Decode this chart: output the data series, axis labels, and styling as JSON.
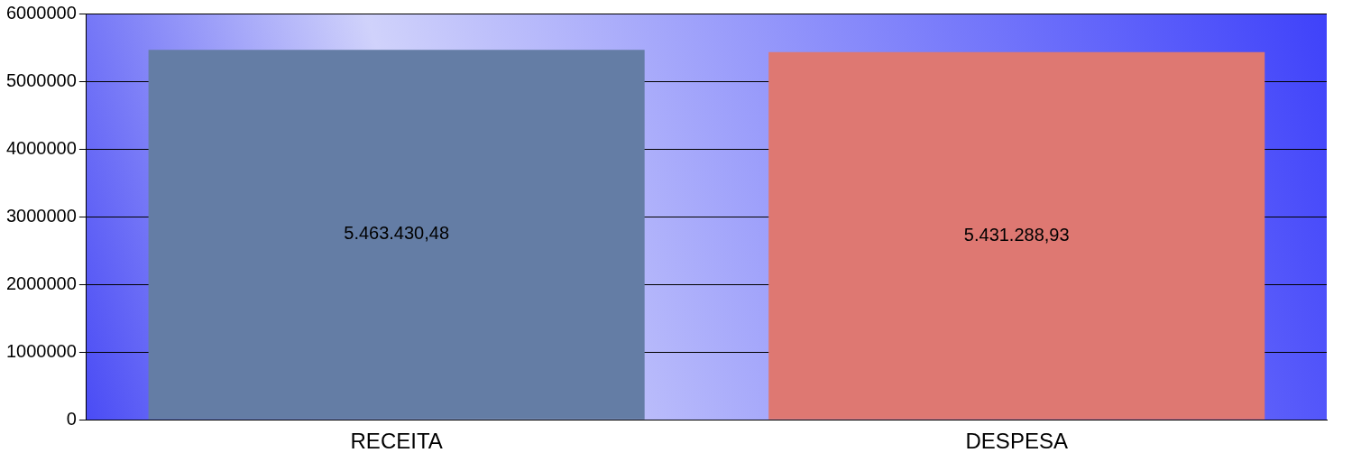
{
  "chart_data": {
    "type": "bar",
    "categories": [
      "RECEITA",
      "DESPESA"
    ],
    "values": [
      5463430.48,
      5431288.93
    ],
    "colors": [
      "#647da5",
      "#de7872"
    ],
    "value_labels": [
      "5.463.430,48",
      "5.431.288,93"
    ],
    "ylim": [
      0,
      6000000
    ],
    "yticks": [
      0,
      1000000,
      2000000,
      3000000,
      4000000,
      5000000,
      6000000
    ],
    "grid": "y",
    "legend": false
  }
}
